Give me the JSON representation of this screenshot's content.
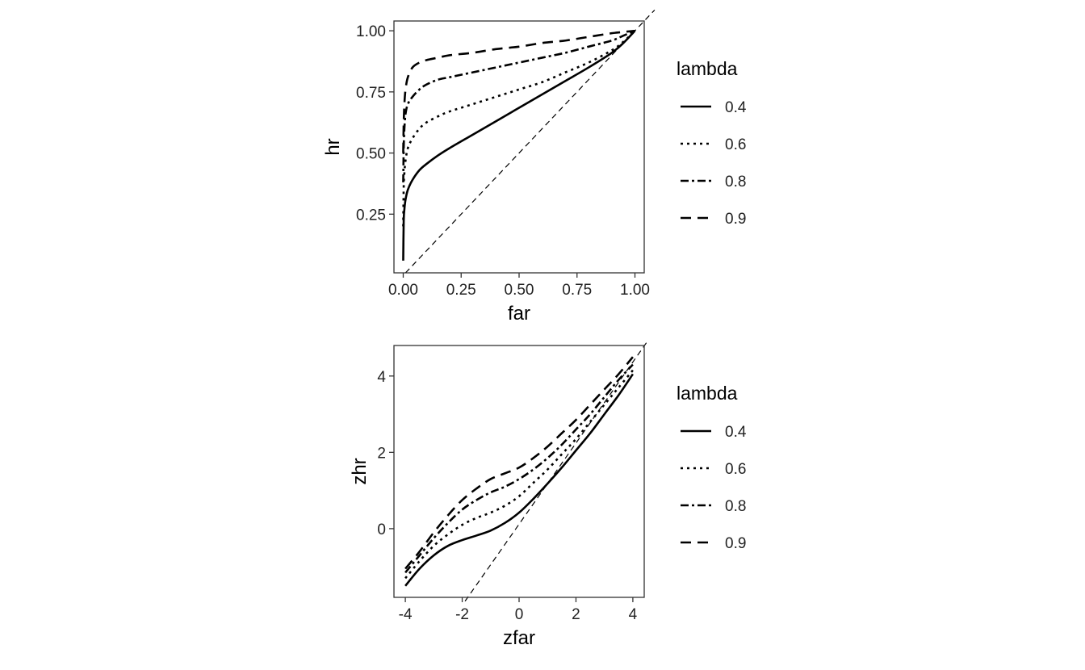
{
  "chart_data": [
    {
      "type": "line",
      "xlabel": "far",
      "ylabel": "hr",
      "xlim": [
        -0.04,
        1.04
      ],
      "ylim": [
        0.01,
        1.04
      ],
      "xticks": [
        0,
        0.25,
        0.5,
        0.75,
        1
      ],
      "xtick_labels": [
        "0.00",
        "0.25",
        "0.50",
        "0.75",
        "1.00"
      ],
      "yticks": [
        0.25,
        0.5,
        0.75,
        1
      ],
      "ytick_labels": [
        "0.25",
        "0.50",
        "0.75",
        "1.00"
      ],
      "grid": false,
      "reference_line": "y = x",
      "legend": {
        "title": "lambda",
        "placement": "right"
      },
      "series": [
        {
          "name": "0.4",
          "dash": "solid",
          "x": [
            0,
            0.002,
            0.005,
            0.01,
            0.02,
            0.04,
            0.07,
            0.1,
            0.15,
            0.2,
            0.3,
            0.4,
            0.5,
            0.6,
            0.7,
            0.8,
            0.9,
            0.95,
            1.0
          ],
          "y": [
            0.06,
            0.22,
            0.27,
            0.31,
            0.35,
            0.39,
            0.43,
            0.455,
            0.49,
            0.52,
            0.575,
            0.63,
            0.685,
            0.74,
            0.795,
            0.85,
            0.91,
            0.95,
            1.0
          ]
        },
        {
          "name": "0.6",
          "dash": "dotted",
          "x": [
            0,
            0.002,
            0.005,
            0.01,
            0.02,
            0.04,
            0.07,
            0.1,
            0.15,
            0.2,
            0.3,
            0.4,
            0.5,
            0.6,
            0.7,
            0.8,
            0.9,
            0.95,
            1.0
          ],
          "y": [
            0.2,
            0.36,
            0.42,
            0.47,
            0.52,
            0.56,
            0.6,
            0.625,
            0.65,
            0.67,
            0.7,
            0.73,
            0.76,
            0.79,
            0.83,
            0.87,
            0.92,
            0.955,
            1.0
          ]
        },
        {
          "name": "0.8",
          "dash": "dashdot",
          "x": [
            0,
            0.002,
            0.005,
            0.01,
            0.02,
            0.04,
            0.07,
            0.1,
            0.15,
            0.2,
            0.3,
            0.4,
            0.5,
            0.6,
            0.7,
            0.8,
            0.9,
            0.95,
            1.0
          ],
          "y": [
            0.38,
            0.52,
            0.6,
            0.66,
            0.7,
            0.73,
            0.76,
            0.78,
            0.8,
            0.81,
            0.83,
            0.85,
            0.87,
            0.89,
            0.91,
            0.935,
            0.96,
            0.98,
            1.0
          ]
        },
        {
          "name": "0.9",
          "dash": "longdash",
          "x": [
            0,
            0.002,
            0.005,
            0.01,
            0.02,
            0.04,
            0.07,
            0.1,
            0.15,
            0.2,
            0.3,
            0.4,
            0.5,
            0.6,
            0.7,
            0.8,
            0.9,
            0.95,
            1.0
          ],
          "y": [
            0.5,
            0.62,
            0.7,
            0.76,
            0.81,
            0.85,
            0.87,
            0.88,
            0.89,
            0.9,
            0.91,
            0.925,
            0.935,
            0.95,
            0.96,
            0.975,
            0.99,
            0.995,
            1.0
          ]
        }
      ]
    },
    {
      "type": "line",
      "xlabel": "zfar",
      "ylabel": "zhr",
      "xlim": [
        -4.4,
        4.4
      ],
      "ylim": [
        -1.8,
        4.8
      ],
      "xticks": [
        -4,
        -2,
        0,
        2,
        4
      ],
      "xtick_labels": [
        "-4",
        "-2",
        "0",
        "2",
        "4"
      ],
      "yticks": [
        0,
        2,
        4
      ],
      "ytick_labels": [
        "0",
        "2",
        "4"
      ],
      "grid": false,
      "reference_line": "y = x",
      "legend": {
        "title": "lambda",
        "placement": "right"
      },
      "series": [
        {
          "name": "0.4",
          "dash": "solid",
          "x": [
            -4,
            -3.5,
            -3,
            -2.5,
            -2,
            -1.5,
            -1,
            -0.5,
            0,
            0.5,
            1,
            1.5,
            2,
            2.5,
            3,
            3.5,
            4
          ],
          "y": [
            -1.5,
            -1.05,
            -0.7,
            -0.45,
            -0.3,
            -0.18,
            -0.05,
            0.15,
            0.42,
            0.78,
            1.18,
            1.6,
            2.05,
            2.5,
            3.0,
            3.5,
            4.05
          ]
        },
        {
          "name": "0.6",
          "dash": "dotted",
          "x": [
            -4,
            -3.5,
            -3,
            -2.5,
            -2,
            -1.5,
            -1,
            -0.5,
            0,
            0.5,
            1,
            1.5,
            2,
            2.5,
            3,
            3.5,
            4
          ],
          "y": [
            -1.3,
            -0.85,
            -0.45,
            -0.15,
            0.1,
            0.28,
            0.42,
            0.6,
            0.85,
            1.2,
            1.55,
            1.95,
            2.35,
            2.8,
            3.25,
            3.7,
            4.15
          ]
        },
        {
          "name": "0.8",
          "dash": "dashdot",
          "x": [
            -4,
            -3.5,
            -3,
            -2.5,
            -2,
            -1.5,
            -1,
            -0.5,
            0,
            0.5,
            1,
            1.5,
            2,
            2.5,
            3,
            3.5,
            4
          ],
          "y": [
            -1.15,
            -0.7,
            -0.25,
            0.15,
            0.5,
            0.75,
            0.95,
            1.1,
            1.3,
            1.55,
            1.85,
            2.2,
            2.6,
            3.0,
            3.45,
            3.9,
            4.3
          ]
        },
        {
          "name": "0.9",
          "dash": "longdash",
          "x": [
            -4,
            -3.5,
            -3,
            -2.5,
            -2,
            -1.5,
            -1,
            -0.5,
            0,
            0.5,
            1,
            1.5,
            2,
            2.5,
            3,
            3.5,
            4
          ],
          "y": [
            -1.05,
            -0.6,
            -0.1,
            0.35,
            0.75,
            1.05,
            1.3,
            1.45,
            1.6,
            1.85,
            2.15,
            2.5,
            2.85,
            3.25,
            3.65,
            4.05,
            4.5
          ]
        }
      ]
    }
  ],
  "legend_styles": {
    "0.4": "solid",
    "0.6": "dotted",
    "0.8": "dashdot",
    "0.9": "longdash"
  },
  "colors": {
    "line": "#000000",
    "text": "#222222",
    "border": "#333333",
    "background": "#ffffff"
  }
}
